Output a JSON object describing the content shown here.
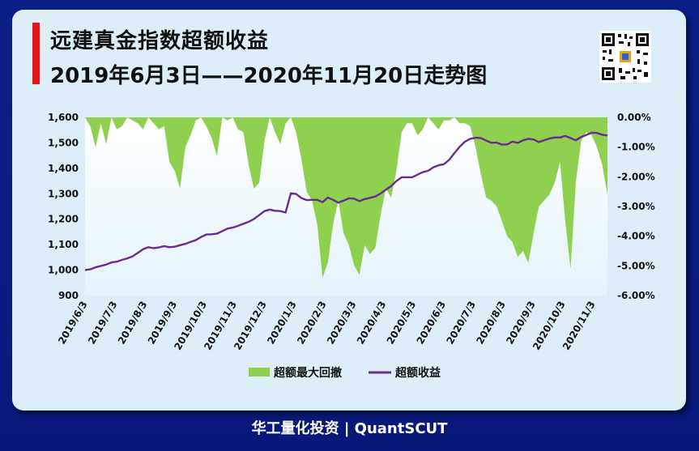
{
  "header": {
    "title": "远建真金指数超额收益",
    "subtitle": "2019年6月3日——2020年11月20日走势图"
  },
  "footer": {
    "text": "华工量化投资 | QuantSCUT"
  },
  "chart_data": {
    "type": "line+area",
    "x_labels": [
      "2019/6/3",
      "2019/7/3",
      "2019/8/3",
      "2019/9/3",
      "2019/10/3",
      "2019/11/3",
      "2019/12/3",
      "2020/1/3",
      "2020/2/3",
      "2020/3/3",
      "2020/4/3",
      "2020/5/3",
      "2020/6/3",
      "2020/7/3",
      "2020/8/3",
      "2020/9/3",
      "2020/10/3",
      "2020/11/3"
    ],
    "y_left": {
      "min": 900,
      "max": 1600,
      "ticks": [
        "1,600",
        "1,500",
        "1,400",
        "1,300",
        "1,200",
        "1,100",
        "1,000",
        "900"
      ]
    },
    "y_right": {
      "min": -6,
      "max": 0,
      "ticks": [
        "0.00%",
        "-1.00%",
        "-2.00%",
        "-3.00%",
        "-4.00%",
        "-5.00%",
        "-6.00%"
      ]
    },
    "grid": false,
    "legend": "bottom-center",
    "colors": {
      "area": "#8fd14f",
      "line": "#6a2c8f",
      "plot_bg_top": "#ffffff",
      "plot_bg_bottom": "#e3f4fb"
    },
    "series": [
      {
        "name": "超额最大回撤",
        "axis": "right",
        "kind": "area",
        "values": [
          0,
          -0.3,
          -1.0,
          -0.2,
          -0.9,
          0,
          -0.4,
          -0.3,
          0,
          -0.1,
          -0.2,
          -0.4,
          0,
          -0.2,
          -0.4,
          -0.3,
          -1.5,
          -1.8,
          -2.4,
          -1.0,
          -0.6,
          -0.1,
          0,
          -0.3,
          -0.7,
          -1.3,
          0,
          -0.1,
          0,
          -0.4,
          -0.5,
          -1.6,
          -2.4,
          -2.2,
          -0.8,
          0,
          -0.5,
          -0.9,
          -0.2,
          0,
          -0.5,
          -1.4,
          -2.5,
          -2.8,
          -3.6,
          -5.4,
          -4.9,
          -3.6,
          -2.8,
          -3.9,
          -4.3,
          -5.0,
          -5.3,
          -4.3,
          -4.6,
          -4.4,
          -3.3,
          -2.4,
          -2.7,
          -1.8,
          -0.5,
          -0.2,
          -0.2,
          -0.6,
          -0.4,
          0,
          -0.2,
          -0.4,
          -0.1,
          -0.1,
          0,
          -0.2,
          -0.2,
          -0.3,
          -1.0,
          -1.9,
          -2.7,
          -2.8,
          -3.0,
          -3.5,
          -4.0,
          -4.2,
          -4.7,
          -4.5,
          -4.9,
          -3.9,
          -3.0,
          -2.8,
          -2.6,
          -2.2,
          -1.5,
          -3.5,
          -5.1,
          -2.2,
          -0.8,
          -0.5,
          -0.6,
          -1.0,
          -1.6,
          -2.6
        ]
      },
      {
        "name": "超额收益",
        "axis": "left",
        "kind": "line",
        "values": [
          1000,
          1003,
          1011,
          1016,
          1022,
          1030,
          1033,
          1040,
          1046,
          1054,
          1068,
          1082,
          1090,
          1086,
          1089,
          1094,
          1090,
          1092,
          1098,
          1103,
          1111,
          1118,
          1130,
          1140,
          1141,
          1143,
          1153,
          1163,
          1167,
          1174,
          1182,
          1190,
          1201,
          1216,
          1232,
          1238,
          1233,
          1232,
          1226,
          1302,
          1299,
          1283,
          1275,
          1276,
          1276,
          1267,
          1285,
          1276,
          1265,
          1273,
          1282,
          1281,
          1271,
          1279,
          1284,
          1289,
          1301,
          1316,
          1330,
          1350,
          1365,
          1365,
          1365,
          1375,
          1385,
          1390,
          1404,
          1412,
          1416,
          1433,
          1460,
          1485,
          1505,
          1516,
          1520,
          1519,
          1509,
          1500,
          1501,
          1493,
          1494,
          1505,
          1500,
          1510,
          1516,
          1513,
          1503,
          1510,
          1517,
          1521,
          1521,
          1527,
          1519,
          1510,
          1523,
          1531,
          1540,
          1539,
          1532,
          1529
        ]
      }
    ]
  },
  "legend": [
    {
      "label": "超额最大回撤"
    },
    {
      "label": "超额收益"
    }
  ]
}
